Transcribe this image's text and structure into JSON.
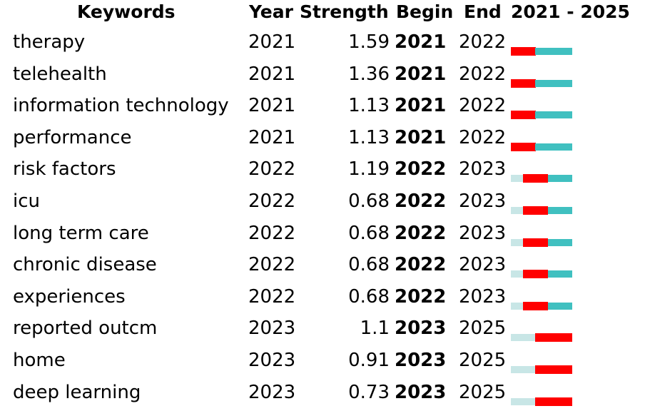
{
  "headers": {
    "keywords": "Keywords",
    "year": "Year",
    "strength": "Strength",
    "begin": "Begin",
    "end": "End",
    "range": "2021 - 2025"
  },
  "colors": {
    "burst": "#ff0000",
    "active": "#40c0c0",
    "inactive": "#c8e6e6"
  },
  "chart_data": {
    "type": "table",
    "timeline_start": 2021,
    "timeline_end": 2025,
    "rows": [
      {
        "keyword": "therapy",
        "year": 2021,
        "strength": "1.59",
        "begin": 2021,
        "end": 2022
      },
      {
        "keyword": "telehealth",
        "year": 2021,
        "strength": "1.36",
        "begin": 2021,
        "end": 2022
      },
      {
        "keyword": "information technology",
        "year": 2021,
        "strength": "1.13",
        "begin": 2021,
        "end": 2022
      },
      {
        "keyword": "performance",
        "year": 2021,
        "strength": "1.13",
        "begin": 2021,
        "end": 2022
      },
      {
        "keyword": "risk factors",
        "year": 2022,
        "strength": "1.19",
        "begin": 2022,
        "end": 2023
      },
      {
        "keyword": "icu",
        "year": 2022,
        "strength": "0.68",
        "begin": 2022,
        "end": 2023
      },
      {
        "keyword": "long term care",
        "year": 2022,
        "strength": "0.68",
        "begin": 2022,
        "end": 2023
      },
      {
        "keyword": "chronic disease",
        "year": 2022,
        "strength": "0.68",
        "begin": 2022,
        "end": 2023
      },
      {
        "keyword": "experiences",
        "year": 2022,
        "strength": "0.68",
        "begin": 2022,
        "end": 2023
      },
      {
        "keyword": "reported outcm",
        "year": 2023,
        "strength": "1.1",
        "begin": 2023,
        "end": 2025
      },
      {
        "keyword": "home",
        "year": 2023,
        "strength": "0.91",
        "begin": 2023,
        "end": 2025
      },
      {
        "keyword": "deep learning",
        "year": 2023,
        "strength": "0.73",
        "begin": 2023,
        "end": 2025
      }
    ]
  }
}
